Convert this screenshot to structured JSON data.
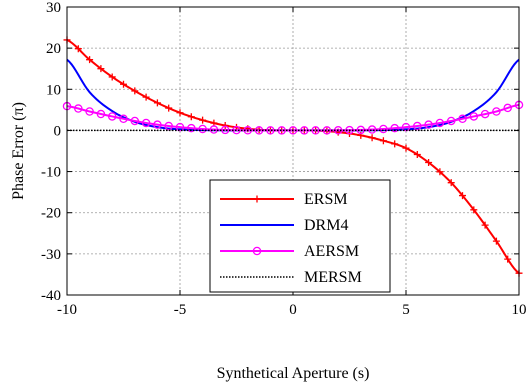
{
  "chart_data": {
    "type": "line",
    "title": "",
    "xlabel": "Synthetical Aperture (s)",
    "ylabel": "Phase Error (π)",
    "xlim": [
      -10,
      10
    ],
    "ylim": [
      -40,
      30
    ],
    "xticks": [
      -10,
      -5,
      0,
      5,
      10
    ],
    "yticks": [
      30,
      20,
      10,
      0,
      -10,
      -20,
      -30,
      -40
    ],
    "grid": true,
    "legend_position": "lower-center",
    "x": [
      -10,
      -9,
      -8,
      -7,
      -6,
      -5,
      -4,
      -3,
      -2,
      -1,
      0,
      1,
      2,
      3,
      4,
      5,
      6,
      7,
      8,
      9,
      10
    ],
    "series": [
      {
        "name": "ERSM",
        "color": "#ff0000",
        "marker": "plus",
        "values": [
          22,
          17.2,
          13.0,
          9.6,
          6.7,
          4.3,
          2.5,
          1.2,
          0.4,
          0.05,
          0,
          -0.05,
          -0.4,
          -1.2,
          -2.5,
          -4.3,
          -7.8,
          -12.7,
          -19.3,
          -26.9,
          -34.7
        ]
      },
      {
        "name": "DRM4",
        "color": "#0000ff",
        "marker": "none",
        "values": [
          17.2,
          9.3,
          4.7,
          2.1,
          0.8,
          0.25,
          0.08,
          0.02,
          0,
          0,
          0,
          0,
          0,
          0.02,
          0.08,
          0.25,
          0.8,
          2.1,
          4.7,
          9.3,
          17.2
        ]
      },
      {
        "name": "AERSM",
        "color": "#ff00ff",
        "marker": "circle",
        "values": [
          5.9,
          4.6,
          3.4,
          2.3,
          1.4,
          0.8,
          0.35,
          0.12,
          0.03,
          0,
          0,
          0,
          0.03,
          0.12,
          0.35,
          0.8,
          1.4,
          2.3,
          3.4,
          4.6,
          6.2
        ]
      },
      {
        "name": "MERSM",
        "color": "#000000",
        "marker": "none",
        "dash": "dotted",
        "values": [
          0,
          0,
          0,
          0,
          0,
          0,
          0,
          0,
          0,
          0,
          0,
          0,
          0,
          0,
          0,
          0,
          0,
          0,
          0,
          0,
          0
        ]
      }
    ]
  }
}
